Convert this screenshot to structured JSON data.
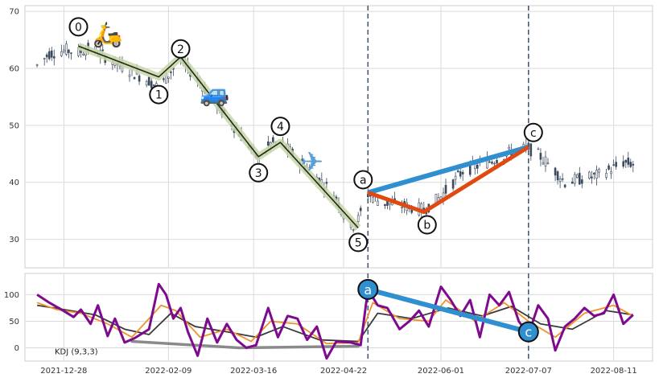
{
  "chart_data": [
    {
      "type": "candlestick",
      "ylim": [
        25,
        71
      ],
      "y_ticks": [
        30,
        40,
        50,
        60,
        70
      ],
      "x_range": [
        "2021-12-12",
        "2022-08-27"
      ],
      "x_tick_dates": [
        "2021-12-28",
        "2022-02-09",
        "2022-03-16",
        "2022-04-22",
        "2022-06-01",
        "2022-07-07",
        "2022-08-11"
      ],
      "x_tick_labels": [
        "2021-12-28",
        "2022-02-09",
        "2022-03-16",
        "2022-04-22",
        "2022-06-01",
        "2022-07-07",
        "2022-08-11"
      ],
      "grid": true,
      "candle_color": "#3b4a5e",
      "price_path": [
        [
          "2021-12-17",
          60.5
        ],
        [
          "2021-12-22",
          62.6
        ],
        [
          "2021-12-29",
          63.2
        ],
        [
          "2022-01-03",
          62.8
        ],
        [
          "2022-01-08",
          63.6
        ],
        [
          "2022-01-20",
          60.5
        ],
        [
          "2022-02-01",
          57.8
        ],
        [
          "2022-02-05",
          56.5
        ],
        [
          "2022-02-10",
          59.5
        ],
        [
          "2022-02-14",
          61.5
        ],
        [
          "2022-02-22",
          57.5
        ],
        [
          "2022-03-03",
          52.5
        ],
        [
          "2022-03-14",
          46.5
        ],
        [
          "2022-03-18",
          43.8
        ],
        [
          "2022-03-23",
          46.8
        ],
        [
          "2022-03-27",
          47.0
        ],
        [
          "2022-04-06",
          43.0
        ],
        [
          "2022-04-18",
          38.0
        ],
        [
          "2022-04-25",
          32.0
        ],
        [
          "2022-04-28",
          33.5
        ],
        [
          "2022-05-02",
          38.0
        ],
        [
          "2022-05-07",
          36.5
        ],
        [
          "2022-05-15",
          36.0
        ],
        [
          "2022-05-25",
          35.2
        ],
        [
          "2022-06-01",
          37.5
        ],
        [
          "2022-06-10",
          42.0
        ],
        [
          "2022-06-20",
          43.5
        ],
        [
          "2022-07-01",
          45.5
        ],
        [
          "2022-07-07",
          46.0
        ],
        [
          "2022-07-12",
          44.5
        ],
        [
          "2022-07-17",
          42.5
        ],
        [
          "2022-07-22",
          40.0
        ],
        [
          "2022-07-27",
          40.5
        ],
        [
          "2022-08-03",
          41.0
        ],
        [
          "2022-08-11",
          42.5
        ],
        [
          "2022-08-15",
          43.5
        ],
        [
          "2022-08-19",
          43.2
        ]
      ],
      "vlines": [
        "2022-05-02",
        "2022-07-07"
      ],
      "impulse_wave": {
        "line_color": "#1c2b1c",
        "band_color": "#c9d6a8",
        "points": [
          {
            "label": "0",
            "date": "2022-01-03",
            "price": 63.9
          },
          {
            "label": "1",
            "date": "2022-02-05",
            "price": 58.5
          },
          {
            "label": "2",
            "date": "2022-02-14",
            "price": 62.0
          },
          {
            "label": "3",
            "date": "2022-03-18",
            "price": 44.5
          },
          {
            "label": "4",
            "date": "2022-03-27",
            "price": 47.0
          },
          {
            "label": "5",
            "date": "2022-04-28",
            "price": 32.0
          }
        ]
      },
      "corrective_wave": {
        "color": "#e04a12",
        "points": [
          {
            "label": "a",
            "date": "2022-05-02",
            "price": 38.2
          },
          {
            "label": "b",
            "date": "2022-05-25",
            "price": 34.8
          },
          {
            "label": "c",
            "date": "2022-07-07",
            "price": 46.2
          }
        ]
      },
      "divergence_line": {
        "color": "#2f8fd0",
        "from": {
          "date": "2022-05-02",
          "price": 38.2
        },
        "to": {
          "date": "2022-07-07",
          "price": 46.2
        }
      },
      "emojis": [
        {
          "name": "scooter",
          "glyph": "🛵",
          "date": "2022-01-15",
          "price": 66.2
        },
        {
          "name": "car",
          "glyph": "🚙",
          "date": "2022-02-28",
          "price": 55.9
        },
        {
          "name": "airplane",
          "glyph": "✈",
          "date": "2022-04-09",
          "price": 43.6
        }
      ]
    },
    {
      "type": "line",
      "ylim": [
        -25,
        140
      ],
      "y_ticks": [
        0,
        50,
        100
      ],
      "grid": true,
      "annotation": "KDJ (9,3,3)",
      "series": [
        {
          "color": "#7e0a8e",
          "values": [
            [
              "2021-12-17",
              100
            ],
            [
              "2021-12-22",
              85
            ],
            [
              "2021-12-27",
              72
            ],
            [
              "2022-01-01",
              58
            ],
            [
              "2022-01-04",
              72
            ],
            [
              "2022-01-08",
              45
            ],
            [
              "2022-01-11",
              80
            ],
            [
              "2022-01-15",
              22
            ],
            [
              "2022-01-18",
              55
            ],
            [
              "2022-01-22",
              10
            ],
            [
              "2022-01-26",
              18
            ],
            [
              "2022-02-01",
              35
            ],
            [
              "2022-02-05",
              120
            ],
            [
              "2022-02-08",
              100
            ],
            [
              "2022-02-11",
              55
            ],
            [
              "2022-02-14",
              75
            ],
            [
              "2022-02-17",
              30
            ],
            [
              "2022-02-21",
              -15
            ],
            [
              "2022-02-25",
              55
            ],
            [
              "2022-03-01",
              10
            ],
            [
              "2022-03-05",
              45
            ],
            [
              "2022-03-09",
              15
            ],
            [
              "2022-03-13",
              0
            ],
            [
              "2022-03-17",
              5
            ],
            [
              "2022-03-22",
              75
            ],
            [
              "2022-03-26",
              20
            ],
            [
              "2022-03-30",
              60
            ],
            [
              "2022-04-03",
              55
            ],
            [
              "2022-04-07",
              15
            ],
            [
              "2022-04-11",
              40
            ],
            [
              "2022-04-15",
              -20
            ],
            [
              "2022-04-19",
              12
            ],
            [
              "2022-04-25",
              10
            ],
            [
              "2022-04-29",
              5
            ],
            [
              "2022-05-02",
              110
            ],
            [
              "2022-05-06",
              80
            ],
            [
              "2022-05-10",
              75
            ],
            [
              "2022-05-15",
              35
            ],
            [
              "2022-05-19",
              50
            ],
            [
              "2022-05-23",
              70
            ],
            [
              "2022-05-27",
              40
            ],
            [
              "2022-06-01",
              115
            ],
            [
              "2022-06-05",
              90
            ],
            [
              "2022-06-09",
              60
            ],
            [
              "2022-06-13",
              90
            ],
            [
              "2022-06-17",
              20
            ],
            [
              "2022-06-21",
              100
            ],
            [
              "2022-06-25",
              80
            ],
            [
              "2022-06-29",
              105
            ],
            [
              "2022-07-03",
              50
            ],
            [
              "2022-07-07",
              25
            ],
            [
              "2022-07-11",
              80
            ],
            [
              "2022-07-15",
              55
            ],
            [
              "2022-07-18",
              -5
            ],
            [
              "2022-07-22",
              40
            ],
            [
              "2022-07-26",
              55
            ],
            [
              "2022-07-30",
              75
            ],
            [
              "2022-08-03",
              60
            ],
            [
              "2022-08-07",
              65
            ],
            [
              "2022-08-11",
              100
            ],
            [
              "2022-08-15",
              45
            ],
            [
              "2022-08-19",
              62
            ]
          ]
        },
        {
          "color": "#f0922a",
          "values": [
            [
              "2021-12-17",
              85
            ],
            [
              "2021-12-25",
              72
            ],
            [
              "2022-01-04",
              65
            ],
            [
              "2022-01-15",
              45
            ],
            [
              "2022-01-25",
              20
            ],
            [
              "2022-02-06",
              80
            ],
            [
              "2022-02-12",
              70
            ],
            [
              "2022-02-22",
              20
            ],
            [
              "2022-03-05",
              35
            ],
            [
              "2022-03-15",
              12
            ],
            [
              "2022-03-23",
              50
            ],
            [
              "2022-04-03",
              45
            ],
            [
              "2022-04-15",
              8
            ],
            [
              "2022-04-28",
              10
            ],
            [
              "2022-05-04",
              85
            ],
            [
              "2022-05-15",
              55
            ],
            [
              "2022-05-27",
              50
            ],
            [
              "2022-06-03",
              90
            ],
            [
              "2022-06-15",
              50
            ],
            [
              "2022-06-27",
              85
            ],
            [
              "2022-07-07",
              50
            ],
            [
              "2022-07-18",
              20
            ],
            [
              "2022-07-30",
              65
            ],
            [
              "2022-08-11",
              80
            ],
            [
              "2022-08-19",
              60
            ]
          ]
        },
        {
          "color": "#3a3a3a",
          "values": [
            [
              "2021-12-17",
              80
            ],
            [
              "2021-12-28",
              72
            ],
            [
              "2022-01-10",
              62
            ],
            [
              "2022-01-22",
              35
            ],
            [
              "2022-02-01",
              25
            ],
            [
              "2022-02-10",
              65
            ],
            [
              "2022-02-20",
              40
            ],
            [
              "2022-03-05",
              30
            ],
            [
              "2022-03-17",
              20
            ],
            [
              "2022-03-28",
              40
            ],
            [
              "2022-04-12",
              15
            ],
            [
              "2022-04-28",
              12
            ],
            [
              "2022-05-06",
              65
            ],
            [
              "2022-05-20",
              55
            ],
            [
              "2022-06-04",
              75
            ],
            [
              "2022-06-18",
              60
            ],
            [
              "2022-06-30",
              78
            ],
            [
              "2022-07-12",
              45
            ],
            [
              "2022-07-25",
              35
            ],
            [
              "2022-08-08",
              70
            ],
            [
              "2022-08-19",
              62
            ]
          ]
        }
      ],
      "trend_line": {
        "color": "#8a8a8a",
        "points": [
          [
            "2022-01-25",
            12
          ],
          [
            "2022-03-10",
            0
          ],
          [
            "2022-04-28",
            3
          ]
        ]
      },
      "divergence_line": {
        "color": "#2f8fd0",
        "from": {
          "label": "a",
          "date": "2022-05-02",
          "value": 110
        },
        "to": {
          "label": "c",
          "date": "2022-07-07",
          "value": 30
        }
      }
    }
  ]
}
